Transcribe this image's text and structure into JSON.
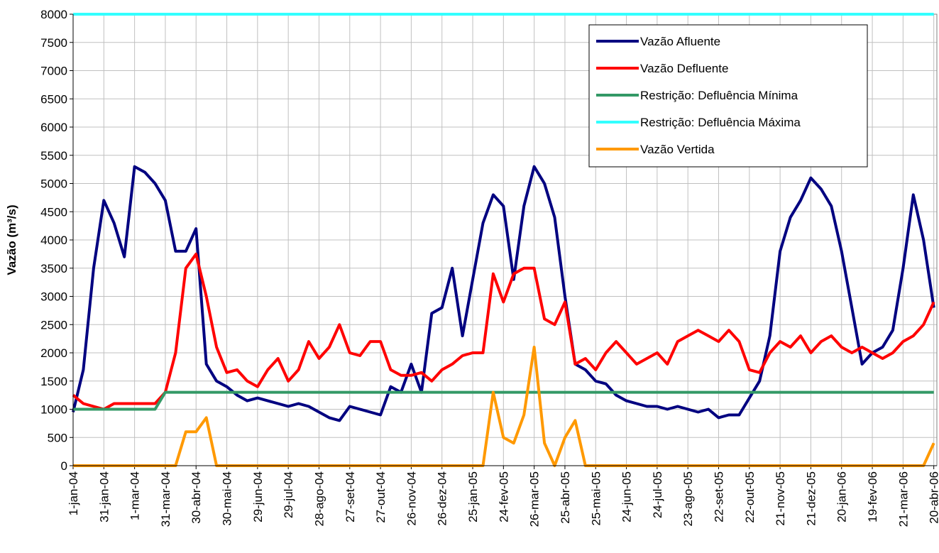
{
  "chart_data": {
    "type": "line",
    "ylabel": "Vazão (m³/s)",
    "x": [
      0,
      10,
      20,
      30,
      40,
      50,
      60,
      70,
      80,
      90,
      100,
      110,
      120,
      130,
      140,
      150,
      160,
      170,
      180,
      190,
      200,
      210,
      220,
      230,
      240,
      250,
      260,
      270,
      280,
      290,
      300,
      310,
      320,
      330,
      340,
      350,
      360,
      370,
      380,
      390,
      400,
      410,
      420,
      430,
      440,
      450,
      460,
      470,
      480,
      490,
      500,
      510,
      520,
      530,
      540,
      550,
      560,
      570,
      580,
      590,
      600,
      610,
      620,
      630,
      640,
      650,
      660,
      670,
      680,
      690,
      700,
      710,
      720,
      730,
      740,
      750,
      760,
      770,
      780,
      790,
      800,
      810,
      820,
      830,
      840
    ],
    "series": [
      {
        "name": "Vazão Afluente",
        "color": "#000080",
        "values": [
          950,
          1700,
          3500,
          4700,
          4300,
          3700,
          5300,
          5200,
          5000,
          4700,
          3800,
          3800,
          4200,
          1800,
          1500,
          1400,
          1250,
          1150,
          1200,
          1150,
          1100,
          1050,
          1100,
          1050,
          950,
          850,
          800,
          1050,
          1000,
          950,
          900,
          1400,
          1300,
          1800,
          1300,
          2700,
          2800,
          3500,
          2300,
          3300,
          4300,
          4800,
          4600,
          3300,
          4600,
          5300,
          5000,
          4400,
          3000,
          1800,
          1700,
          1500,
          1450,
          1250,
          1150,
          1100,
          1050,
          1050,
          1000,
          1050,
          1000,
          950,
          1000,
          850,
          900,
          900,
          1200,
          1500,
          2300,
          3800,
          4400,
          4700,
          5100,
          4900,
          4600,
          3800,
          2800,
          1800,
          2000,
          2100,
          2400,
          3500,
          4800,
          4000,
          2800
        ]
      },
      {
        "name": "Vazão Defluente",
        "color": "#ff0000",
        "values": [
          1250,
          1100,
          1050,
          1000,
          1100,
          1100,
          1100,
          1100,
          1100,
          1300,
          2000,
          3500,
          3750,
          3000,
          2100,
          1650,
          1700,
          1500,
          1400,
          1700,
          1900,
          1500,
          1700,
          2200,
          1900,
          2100,
          2500,
          2000,
          1950,
          2200,
          2200,
          1700,
          1600,
          1600,
          1650,
          1500,
          1700,
          1800,
          1950,
          2000,
          2000,
          3400,
          2900,
          3400,
          3500,
          3500,
          2600,
          2500,
          2900,
          1800,
          1900,
          1700,
          2000,
          2200,
          2000,
          1800,
          1900,
          2000,
          1800,
          2200,
          2300,
          2400,
          2300,
          2200,
          2400,
          2200,
          1700,
          1650,
          2000,
          2200,
          2100,
          2300,
          2000,
          2200,
          2300,
          2100,
          2000,
          2100,
          2000,
          1900,
          2000,
          2200,
          2300,
          2500,
          2900
        ]
      },
      {
        "name": "Restrição: Defluência Mínima",
        "color": "#339966",
        "values": [
          1000,
          1000,
          1000,
          1000,
          1000,
          1000,
          1000,
          1000,
          1000,
          1300,
          1300,
          1300,
          1300,
          1300,
          1300,
          1300,
          1300,
          1300,
          1300,
          1300,
          1300,
          1300,
          1300,
          1300,
          1300,
          1300,
          1300,
          1300,
          1300,
          1300,
          1300,
          1300,
          1300,
          1300,
          1300,
          1300,
          1300,
          1300,
          1300,
          1300,
          1300,
          1300,
          1300,
          1300,
          1300,
          1300,
          1300,
          1300,
          1300,
          1300,
          1300,
          1300,
          1300,
          1300,
          1300,
          1300,
          1300,
          1300,
          1300,
          1300,
          1300,
          1300,
          1300,
          1300,
          1300,
          1300,
          1300,
          1300,
          1300,
          1300,
          1300,
          1300,
          1300,
          1300,
          1300,
          1300,
          1300,
          1300,
          1300,
          1300,
          1300,
          1300,
          1300,
          1300,
          1300
        ]
      },
      {
        "name": "Restrição: Defluência Máxima",
        "color": "#33ffff",
        "values": [
          8000,
          8000,
          8000,
          8000,
          8000,
          8000,
          8000,
          8000,
          8000,
          8000,
          8000,
          8000,
          8000,
          8000,
          8000,
          8000,
          8000,
          8000,
          8000,
          8000,
          8000,
          8000,
          8000,
          8000,
          8000,
          8000,
          8000,
          8000,
          8000,
          8000,
          8000,
          8000,
          8000,
          8000,
          8000,
          8000,
          8000,
          8000,
          8000,
          8000,
          8000,
          8000,
          8000,
          8000,
          8000,
          8000,
          8000,
          8000,
          8000,
          8000,
          8000,
          8000,
          8000,
          8000,
          8000,
          8000,
          8000,
          8000,
          8000,
          8000,
          8000,
          8000,
          8000,
          8000,
          8000,
          8000,
          8000,
          8000,
          8000,
          8000,
          8000,
          8000,
          8000,
          8000,
          8000,
          8000,
          8000,
          8000,
          8000,
          8000,
          8000,
          8000,
          8000,
          8000,
          8000
        ]
      },
      {
        "name": "Vazão Vertida",
        "color": "#ff9900",
        "values": [
          0,
          0,
          0,
          0,
          0,
          0,
          0,
          0,
          0,
          0,
          0,
          600,
          600,
          850,
          0,
          0,
          0,
          0,
          0,
          0,
          0,
          0,
          0,
          0,
          0,
          0,
          0,
          0,
          0,
          0,
          0,
          0,
          0,
          0,
          0,
          0,
          0,
          0,
          0,
          0,
          0,
          1300,
          500,
          400,
          900,
          2100,
          400,
          0,
          500,
          800,
          0,
          0,
          0,
          0,
          0,
          0,
          0,
          0,
          0,
          0,
          0,
          0,
          0,
          0,
          0,
          0,
          0,
          0,
          0,
          0,
          0,
          0,
          0,
          0,
          0,
          0,
          0,
          0,
          0,
          0,
          0,
          0,
          0,
          0,
          400
        ]
      }
    ],
    "xlim": [
      0,
      843
    ],
    "xticks": [
      {
        "value": 0,
        "label": "1-jan-04"
      },
      {
        "value": 30,
        "label": "31-jan-04"
      },
      {
        "value": 60,
        "label": "1-mar-04"
      },
      {
        "value": 90,
        "label": "31-mar-04"
      },
      {
        "value": 120,
        "label": "30-abr-04"
      },
      {
        "value": 150,
        "label": "30-mai-04"
      },
      {
        "value": 180,
        "label": "29-jun-04"
      },
      {
        "value": 210,
        "label": "29-jul-04"
      },
      {
        "value": 240,
        "label": "28-ago-04"
      },
      {
        "value": 270,
        "label": "27-set-04"
      },
      {
        "value": 300,
        "label": "27-out-04"
      },
      {
        "value": 330,
        "label": "26-nov-04"
      },
      {
        "value": 360,
        "label": "26-dez-04"
      },
      {
        "value": 390,
        "label": "25-jan-05"
      },
      {
        "value": 420,
        "label": "24-fev-05"
      },
      {
        "value": 450,
        "label": "26-mar-05"
      },
      {
        "value": 480,
        "label": "25-abr-05"
      },
      {
        "value": 510,
        "label": "25-mai-05"
      },
      {
        "value": 540,
        "label": "24-jun-05"
      },
      {
        "value": 570,
        "label": "24-jul-05"
      },
      {
        "value": 600,
        "label": "23-ago-05"
      },
      {
        "value": 630,
        "label": "22-set-05"
      },
      {
        "value": 660,
        "label": "22-out-05"
      },
      {
        "value": 690,
        "label": "21-nov-05"
      },
      {
        "value": 720,
        "label": "21-dez-05"
      },
      {
        "value": 750,
        "label": "20-jan-06"
      },
      {
        "value": 780,
        "label": "19-fev-06"
      },
      {
        "value": 810,
        "label": "21-mar-06"
      },
      {
        "value": 840,
        "label": "20-abr-06"
      }
    ],
    "ylim": [
      0,
      8000
    ],
    "yticks": [
      0,
      500,
      1000,
      1500,
      2000,
      2500,
      3000,
      3500,
      4000,
      4500,
      5000,
      5500,
      6000,
      6500,
      7000,
      7500,
      8000
    ],
    "grid": true
  }
}
